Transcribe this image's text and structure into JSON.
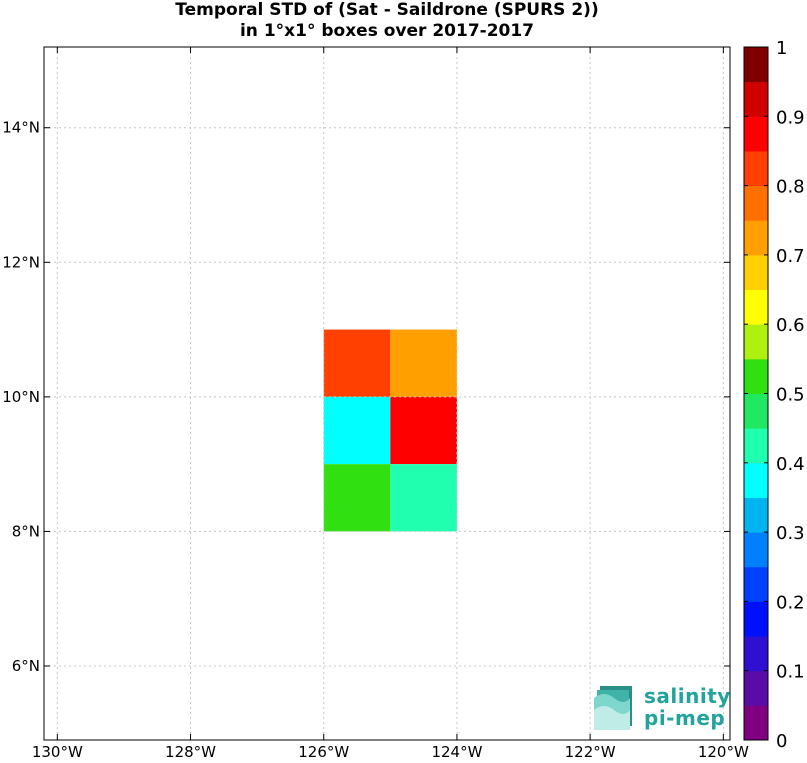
{
  "chart_data": {
    "type": "heatmap",
    "title": "Temporal STD of (Sat - Saildrone (SPURS 2))",
    "subtitle": "in 1°x1° boxes over 2017-2017",
    "xlabel": "",
    "ylabel": "",
    "xlim": [
      -130.2,
      -119.9
    ],
    "ylim": [
      4.9,
      15.2
    ],
    "grid": true,
    "x_ticks": [
      -130,
      -128,
      -126,
      -124,
      -122,
      -120
    ],
    "x_tick_labels": [
      "130°W",
      "128°W",
      "126°W",
      "124°W",
      "122°W",
      "120°W"
    ],
    "y_ticks": [
      6,
      8,
      10,
      12,
      14
    ],
    "y_tick_labels": [
      "6°N",
      "8°N",
      "10°N",
      "12°N",
      "14°N"
    ],
    "cells": [
      {
        "lon": [
          -126,
          -125
        ],
        "lat": [
          10,
          11
        ],
        "value": 0.82
      },
      {
        "lon": [
          -125,
          -124
        ],
        "lat": [
          10,
          11
        ],
        "value": 0.72
      },
      {
        "lon": [
          -126,
          -125
        ],
        "lat": [
          9,
          10
        ],
        "value": 0.37
      },
      {
        "lon": [
          -125,
          -124
        ],
        "lat": [
          9,
          10
        ],
        "value": 0.87
      },
      {
        "lon": [
          -126,
          -125
        ],
        "lat": [
          8,
          9
        ],
        "value": 0.52
      },
      {
        "lon": [
          -125,
          -124
        ],
        "lat": [
          8,
          9
        ],
        "value": 0.42
      }
    ],
    "colorbar": {
      "min": 0,
      "max": 1,
      "tick_values": [
        0,
        0.1,
        0.2,
        0.3,
        0.4,
        0.5,
        0.6,
        0.7,
        0.8,
        0.9,
        1
      ],
      "tick_labels": [
        "0",
        "0.1",
        "0.2",
        "0.3",
        "0.4",
        "0.5",
        "0.6",
        "0.7",
        "0.8",
        "0.9",
        "1"
      ],
      "colors": [
        "#800080",
        "#5a0ca6",
        "#3010d0",
        "#0010ff",
        "#0040ff",
        "#0080ff",
        "#00b4f0",
        "#00ffff",
        "#20ffb0",
        "#20e860",
        "#30e010",
        "#b0f010",
        "#ffff00",
        "#ffd000",
        "#ffa000",
        "#ff7000",
        "#ff4000",
        "#ff0000",
        "#d00000",
        "#800000"
      ]
    }
  },
  "logo": {
    "line1": "salinity",
    "line2": "pi-mep"
  }
}
